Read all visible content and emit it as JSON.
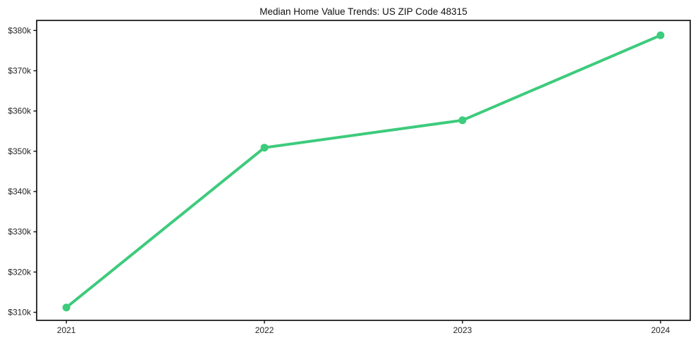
{
  "chart_data": {
    "type": "line",
    "title": "Median Home Value Trends: US ZIP Code 48315",
    "xlabel": "",
    "ylabel": "",
    "x": [
      2021,
      2022,
      2023,
      2024
    ],
    "x_tick_labels": [
      "2021",
      "2022",
      "2023",
      "2024"
    ],
    "y_ticks": [
      310000,
      320000,
      330000,
      340000,
      350000,
      360000,
      370000,
      380000
    ],
    "y_tick_labels": [
      "$310k",
      "$320k",
      "$330k",
      "$340k",
      "$350k",
      "$360k",
      "$370k",
      "$380k"
    ],
    "xlim": [
      2020.85,
      2024.15
    ],
    "ylim": [
      308000,
      382500
    ],
    "grid": false,
    "legend": "none",
    "series": [
      {
        "name": "Median home value",
        "values": [
          311200,
          350900,
          357700,
          378800
        ],
        "color": "#3dcb7c",
        "marker": "circle"
      }
    ],
    "colors": {
      "line": "#3dcb7c",
      "spine": "#111111",
      "tick_text": "#262626",
      "background": "#ffffff"
    }
  }
}
